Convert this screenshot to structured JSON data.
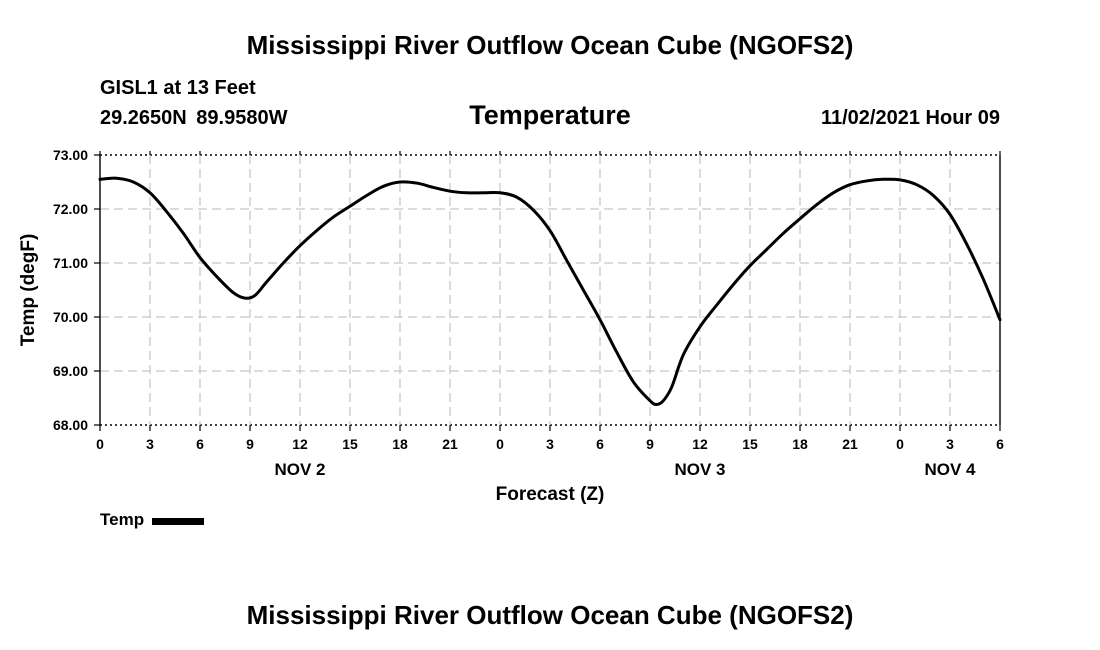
{
  "chart_data": {
    "type": "line",
    "title": "Mississippi River Outflow Ocean Cube (NGOFS2)",
    "footer_title": "Mississippi River Outflow Ocean Cube (NGOFS2)",
    "station": "GISL1 at 13 Feet",
    "location": "29.2650N 89.9580W",
    "subtitle": "Temperature",
    "datetime": "11/02/2021 Hour 09",
    "xlabel": "Forecast (Z)",
    "ylabel": "Temp (degF)",
    "ylim": [
      68.0,
      73.0
    ],
    "yticks": [
      "68.00",
      "69.00",
      "70.00",
      "71.00",
      "72.00",
      "73.00"
    ],
    "xlim": [
      0,
      54
    ],
    "xticks": [
      {
        "x": 0,
        "label": "0"
      },
      {
        "x": 3,
        "label": "3"
      },
      {
        "x": 6,
        "label": "6"
      },
      {
        "x": 9,
        "label": "9"
      },
      {
        "x": 12,
        "label": "12"
      },
      {
        "x": 15,
        "label": "15"
      },
      {
        "x": 18,
        "label": "18"
      },
      {
        "x": 21,
        "label": "21"
      },
      {
        "x": 24,
        "label": "0"
      },
      {
        "x": 27,
        "label": "3"
      },
      {
        "x": 30,
        "label": "6"
      },
      {
        "x": 33,
        "label": "9"
      },
      {
        "x": 36,
        "label": "12"
      },
      {
        "x": 39,
        "label": "15"
      },
      {
        "x": 42,
        "label": "18"
      },
      {
        "x": 45,
        "label": "21"
      },
      {
        "x": 48,
        "label": "0"
      },
      {
        "x": 51,
        "label": "3"
      },
      {
        "x": 54,
        "label": "6"
      }
    ],
    "day_labels": [
      {
        "x": 12,
        "label": "NOV 2"
      },
      {
        "x": 36,
        "label": "NOV 3"
      },
      {
        "x": 51,
        "label": "NOV 4"
      }
    ],
    "grid": true,
    "legend": {
      "position": "bottom-left",
      "entries": [
        "Temp"
      ]
    },
    "series": [
      {
        "name": "Temp",
        "x": [
          0,
          1,
          2,
          3,
          4,
          5,
          6,
          7,
          8,
          8.7,
          9.3,
          10,
          11,
          12,
          13,
          14,
          15,
          16,
          17,
          18,
          19,
          20,
          21,
          22,
          23,
          24,
          25,
          26,
          27,
          28,
          29,
          30,
          31,
          32,
          33,
          33.4,
          33.8,
          34.3,
          35,
          36,
          37,
          38,
          39,
          40,
          41,
          42,
          43,
          44,
          45,
          46,
          47,
          48,
          49,
          50,
          51,
          52,
          53,
          54
        ],
        "values": [
          72.55,
          72.57,
          72.5,
          72.3,
          71.95,
          71.55,
          71.1,
          70.75,
          70.45,
          70.35,
          70.4,
          70.65,
          71.0,
          71.32,
          71.6,
          71.85,
          72.05,
          72.25,
          72.42,
          72.5,
          72.48,
          72.4,
          72.33,
          72.3,
          72.3,
          72.3,
          72.22,
          71.98,
          71.6,
          71.05,
          70.5,
          69.95,
          69.35,
          68.8,
          68.45,
          68.38,
          68.45,
          68.7,
          69.3,
          69.82,
          70.22,
          70.6,
          70.95,
          71.25,
          71.55,
          71.82,
          72.08,
          72.3,
          72.45,
          72.52,
          72.55,
          72.54,
          72.45,
          72.25,
          71.9,
          71.35,
          70.7,
          69.95
        ]
      }
    ]
  }
}
